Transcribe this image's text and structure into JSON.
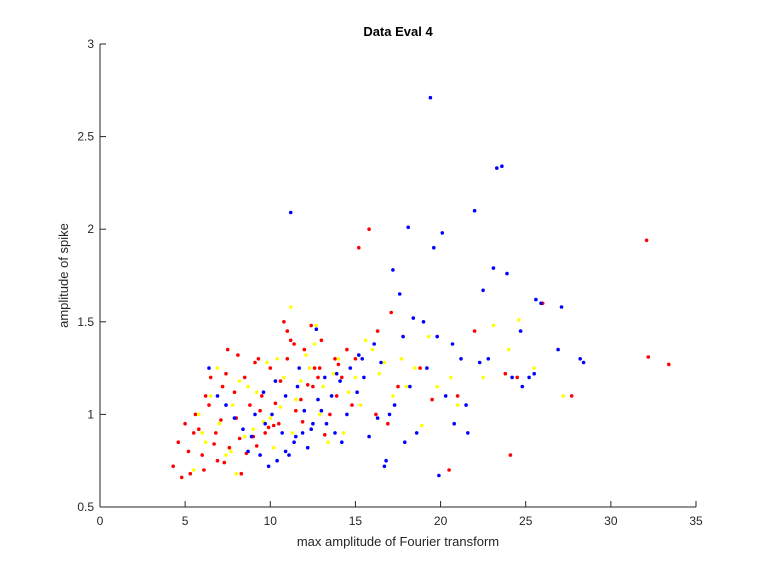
{
  "chart_data": {
    "type": "scatter",
    "title": "Data Eval 4",
    "xlabel": "max amplitude of Fourier transform",
    "ylabel": "amplitude of spike",
    "xlim": [
      0,
      35
    ],
    "ylim": [
      0.5,
      3
    ],
    "xticks": [
      0,
      5,
      10,
      15,
      20,
      25,
      30,
      35
    ],
    "yticks": [
      0.5,
      1,
      1.5,
      2,
      2.5,
      3
    ],
    "xtick_labels": [
      "0",
      "5",
      "10",
      "15",
      "20",
      "25",
      "30",
      "35"
    ],
    "ytick_labels": [
      "0.5",
      "1",
      "1.5",
      "2",
      "2.5",
      "3"
    ],
    "grid": false,
    "legend": null,
    "series": [
      {
        "name": "red points",
        "color": "#ff0000",
        "x": [
          32.1,
          32.2,
          33.4,
          27.7,
          26.0,
          24.1,
          24.5,
          15.8,
          15.2,
          21.0,
          17.1,
          16.3,
          14.5,
          13.8,
          12.9,
          20.5,
          22.0,
          4.3,
          4.6,
          5.0,
          5.3,
          5.6,
          6.0,
          6.4,
          6.8,
          7.2,
          7.6,
          8.0,
          8.5,
          9.0,
          9.5,
          10.0,
          10.5,
          11.0,
          11.5,
          12.0,
          12.5,
          13.0,
          5.2,
          5.8,
          6.2,
          6.9,
          7.4,
          8.2,
          8.8,
          9.3,
          9.9,
          10.6,
          11.2,
          11.8,
          12.6,
          13.5,
          14.2,
          6.1,
          6.7,
          7.1,
          7.9,
          8.6,
          9.1,
          9.7,
          10.3,
          11.0,
          11.9,
          12.8,
          13.9,
          15.0,
          16.2,
          17.5,
          18.8,
          7.5,
          8.3,
          9.4,
          10.2,
          11.4,
          12.2,
          13.2,
          14.0,
          4.8,
          5.5,
          6.5,
          7.3,
          8.1,
          9.2,
          10.8,
          12.4,
          14.8,
          16.9,
          19.5,
          23.8
        ],
        "y": [
          1.94,
          1.31,
          1.27,
          1.1,
          1.6,
          0.78,
          1.2,
          2.0,
          1.9,
          1.1,
          1.55,
          1.45,
          1.35,
          1.3,
          1.25,
          0.7,
          1.45,
          0.72,
          0.85,
          0.95,
          0.68,
          1.0,
          0.78,
          1.05,
          0.9,
          1.15,
          0.82,
          0.98,
          1.2,
          0.88,
          1.1,
          1.25,
          0.95,
          1.3,
          1.02,
          1.35,
          1.15,
          1.4,
          0.8,
          0.92,
          1.1,
          0.75,
          1.22,
          0.87,
          1.05,
          1.3,
          0.93,
          1.18,
          1.4,
          1.08,
          1.25,
          1.0,
          1.2,
          0.7,
          0.84,
          0.97,
          1.12,
          0.79,
          1.28,
          0.9,
          1.06,
          1.45,
          0.96,
          1.2,
          1.1,
          1.3,
          1.0,
          1.15,
          1.25,
          1.35,
          0.68,
          1.02,
          0.94,
          1.38,
          1.16,
          0.89,
          1.27,
          0.66,
          0.9,
          1.2,
          0.74,
          1.32,
          0.83,
          1.5,
          1.48,
          1.05,
          0.95,
          1.08,
          1.22
        ]
      },
      {
        "name": "yellow points",
        "color": "#ffff00",
        "x": [
          5.5,
          6.2,
          7.0,
          7.8,
          8.5,
          9.2,
          10.0,
          10.8,
          11.5,
          12.3,
          13.1,
          14.0,
          15.0,
          16.0,
          17.2,
          18.5,
          19.8,
          21.0,
          22.5,
          24.0,
          25.5,
          27.2,
          6.5,
          7.4,
          8.2,
          9.0,
          9.8,
          10.6,
          11.3,
          12.1,
          12.9,
          13.7,
          14.6,
          15.6,
          16.7,
          18.0,
          19.3,
          6.0,
          6.9,
          7.7,
          8.7,
          9.6,
          10.4,
          11.8,
          13.4,
          15.3,
          17.7,
          20.6,
          23.1,
          5.8,
          8.0,
          10.2,
          12.6,
          14.3,
          16.4,
          18.9,
          11.2,
          12.7,
          24.6
        ],
        "y": [
          0.7,
          0.85,
          0.95,
          1.05,
          0.88,
          1.12,
          0.98,
          1.2,
          1.08,
          1.25,
          1.15,
          1.3,
          1.2,
          1.35,
          1.1,
          1.25,
          1.15,
          1.05,
          1.2,
          1.35,
          1.25,
          1.1,
          1.1,
          0.78,
          1.18,
          0.92,
          1.28,
          1.04,
          0.9,
          1.32,
          1.0,
          1.22,
          1.12,
          1.4,
          1.28,
          1.15,
          1.42,
          0.9,
          1.25,
          0.8,
          1.15,
          0.96,
          1.3,
          1.18,
          0.85,
          1.05,
          1.3,
          1.2,
          1.48,
          1.0,
          0.68,
          0.82,
          1.38,
          0.9,
          1.22,
          0.94,
          1.58,
          1.48,
          1.51
        ]
      },
      {
        "name": "blue points",
        "color": "#0000ff",
        "x": [
          19.4,
          23.3,
          23.6,
          22.0,
          18.1,
          19.6,
          11.2,
          17.2,
          17.6,
          20.1,
          23.1,
          23.9,
          22.5,
          25.6,
          25.9,
          27.1,
          26.9,
          28.2,
          28.4,
          25.5,
          25.2,
          24.7,
          21.5,
          20.8,
          19.9,
          18.6,
          17.9,
          16.8,
          16.1,
          15.4,
          14.7,
          14.1,
          13.6,
          13.0,
          12.5,
          11.9,
          11.4,
          10.9,
          10.4,
          9.9,
          9.4,
          8.9,
          8.4,
          7.9,
          7.4,
          6.9,
          6.4,
          10.1,
          10.7,
          11.6,
          12.2,
          12.8,
          13.3,
          13.9,
          14.5,
          15.1,
          15.8,
          16.5,
          17.3,
          18.2,
          19.2,
          20.3,
          21.6,
          22.8,
          24.2,
          9.6,
          10.3,
          11.1,
          11.7,
          12.4,
          13.2,
          14.2,
          15.2,
          16.3,
          17.8,
          19.0,
          20.7,
          22.3,
          8.7,
          9.1,
          9.7,
          10.9,
          11.5,
          12.0,
          13.8,
          15.5,
          17.0,
          18.4,
          21.2,
          24.8,
          16.7,
          19.8,
          12.7
        ],
        "y": [
          2.71,
          2.33,
          2.34,
          2.1,
          2.01,
          1.9,
          2.09,
          1.78,
          1.65,
          1.98,
          1.79,
          1.76,
          1.67,
          1.62,
          1.6,
          1.58,
          1.35,
          1.3,
          1.28,
          1.22,
          1.2,
          1.45,
          1.05,
          0.95,
          0.67,
          0.9,
          0.85,
          0.75,
          1.38,
          1.3,
          1.25,
          1.18,
          1.1,
          1.02,
          0.95,
          0.9,
          0.85,
          0.8,
          0.75,
          0.72,
          0.78,
          0.88,
          0.92,
          0.98,
          1.05,
          1.1,
          1.25,
          1.0,
          0.9,
          1.15,
          0.82,
          1.08,
          0.95,
          1.22,
          1.0,
          1.12,
          0.88,
          1.28,
          1.05,
          1.15,
          1.25,
          1.1,
          0.9,
          1.3,
          1.2,
          1.12,
          1.18,
          0.78,
          1.25,
          0.92,
          1.2,
          0.85,
          1.32,
          0.98,
          1.42,
          1.5,
          1.38,
          1.28,
          0.8,
          1.0,
          0.95,
          1.1,
          0.88,
          1.02,
          0.9,
          1.2,
          1.0,
          1.52,
          1.3,
          1.15,
          0.72,
          1.42,
          1.46
        ]
      }
    ]
  }
}
